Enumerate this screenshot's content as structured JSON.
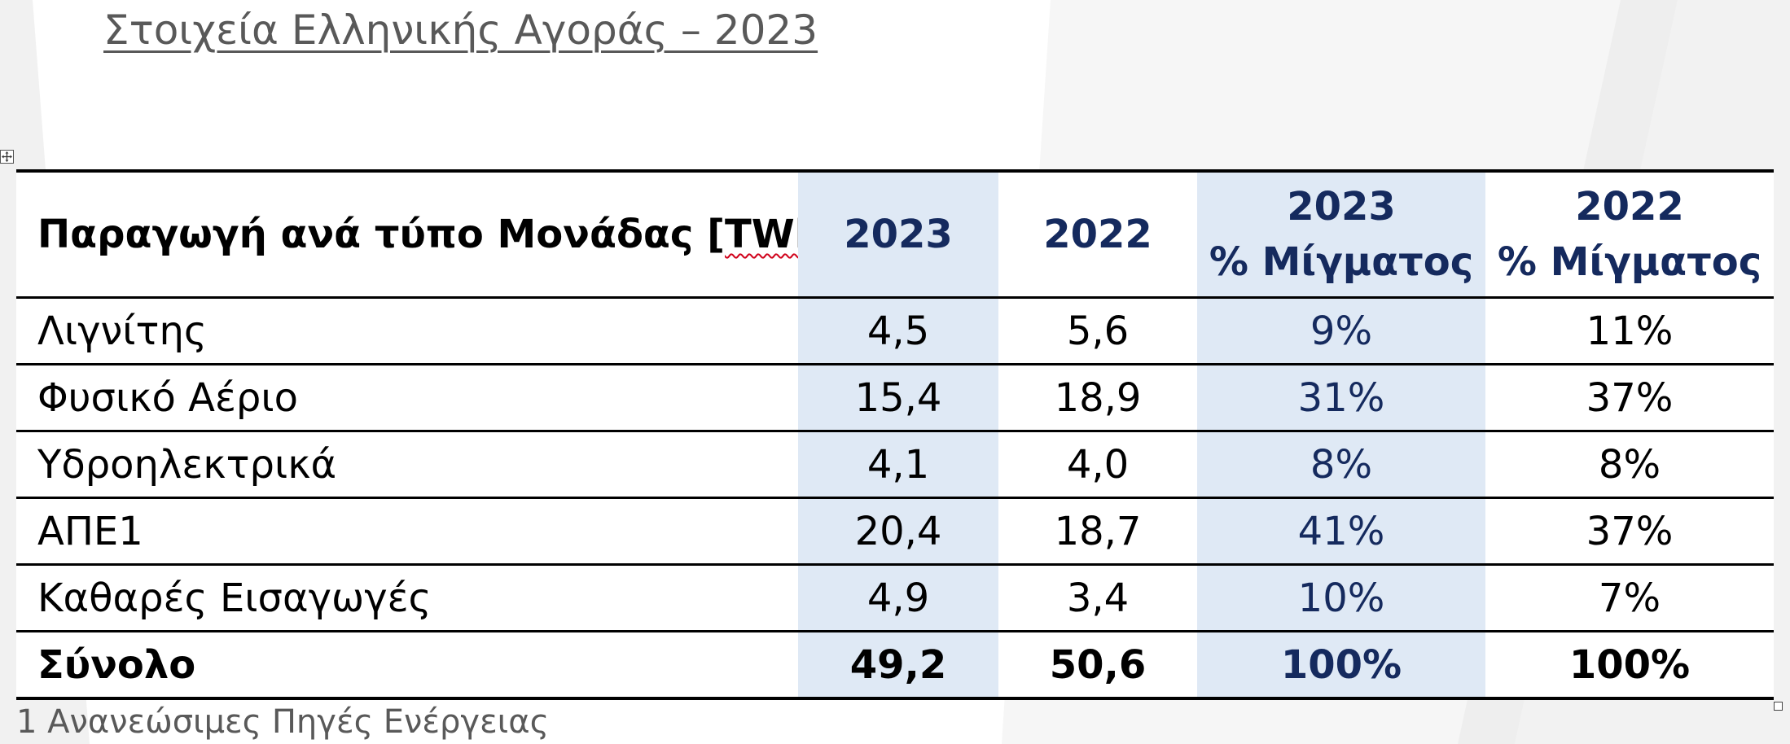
{
  "title": "Στοιχεία Ελληνικής Αγοράς – 2023",
  "table": {
    "header": {
      "label": "Παραγωγή ανά τύπο Μονάδας [",
      "label_unit": "TWh",
      "label_end": "]",
      "col_2023": "2023",
      "col_2022": "2022",
      "col_mix_2023_year": "2023",
      "col_mix_2023_label": "% Μίγματος",
      "col_mix_2022_year": "2022",
      "col_mix_2022_label": "% Μίγματος"
    },
    "rows": [
      {
        "label": "Λιγνίτης",
        "v2023": "4,5",
        "v2022": "5,6",
        "mix2023": "9%",
        "mix2022": "11%"
      },
      {
        "label": "Φυσικό Αέριο",
        "v2023": "15,4",
        "v2022": "18,9",
        "mix2023": "31%",
        "mix2022": "37%"
      },
      {
        "label": "Υδροηλεκτρικά",
        "v2023": "4,1",
        "v2022": "4,0",
        "mix2023": "8%",
        "mix2022": "8%"
      },
      {
        "label": "ΑΠΕ1",
        "v2023": "20,4",
        "v2022": "18,7",
        "mix2023": "41%",
        "mix2022": "37%"
      },
      {
        "label": "Καθαρές Εισαγωγές",
        "v2023": "4,9",
        "v2022": "3,4",
        "mix2023": "10%",
        "mix2022": "7%"
      }
    ],
    "total": {
      "label": "Σύνολο",
      "v2023": "49,2",
      "v2022": "50,6",
      "mix2023": "100%",
      "mix2022": "100%"
    }
  },
  "footnote": "1 Ανανεώσιμες Πηγές Ενέργειας",
  "colors": {
    "accent_navy": "#152a5e",
    "column_shade": "#dfe9f5",
    "title_gray": "#595959"
  },
  "icons": {
    "move_handle": "move-handle-icon",
    "resize_handle": "resize-handle-icon"
  }
}
